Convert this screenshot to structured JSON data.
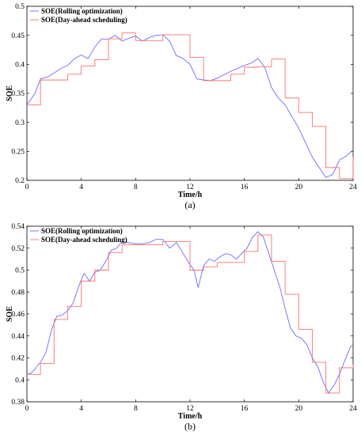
{
  "chart_data": [
    {
      "type": "line",
      "caption": "(a)",
      "xlabel": "Time/h",
      "ylabel": "SOE",
      "xlim": [
        0,
        24
      ],
      "ylim": [
        0.2,
        0.5
      ],
      "xticks": [
        0,
        4,
        8,
        12,
        16,
        20,
        24
      ],
      "yticks": [
        0.2,
        0.25,
        0.3,
        0.35,
        0.4,
        0.45,
        0.5
      ],
      "ytick_labels": [
        "0.2",
        "0.25",
        "0.3",
        "0.35",
        "0.4",
        "0.45",
        "0.5"
      ],
      "grid": false,
      "legend_position": "top-left",
      "series": [
        {
          "name": "SOE(Rolling optimization)",
          "color": "#6b6bff",
          "style": "line",
          "x": [
            0,
            0.3,
            0.6,
            1,
            1.5,
            2,
            2.5,
            3,
            3.5,
            4,
            4.5,
            5,
            5.5,
            6,
            6.5,
            7,
            7.5,
            8,
            8.5,
            9,
            9.5,
            10,
            10.5,
            11,
            11.5,
            12,
            12.5,
            13,
            13.5,
            14,
            14.5,
            15,
            15.5,
            16,
            16.5,
            17,
            17.5,
            18,
            18.5,
            19,
            19.5,
            20,
            20.5,
            21,
            21.5,
            22,
            22.5,
            23,
            23.5,
            24
          ],
          "y": [
            0.33,
            0.34,
            0.35,
            0.375,
            0.378,
            0.385,
            0.393,
            0.398,
            0.41,
            0.416,
            0.41,
            0.43,
            0.444,
            0.443,
            0.45,
            0.44,
            0.445,
            0.449,
            0.44,
            0.446,
            0.45,
            0.451,
            0.44,
            0.415,
            0.41,
            0.4,
            0.375,
            0.373,
            0.372,
            0.376,
            0.382,
            0.388,
            0.393,
            0.398,
            0.402,
            0.41,
            0.395,
            0.36,
            0.342,
            0.33,
            0.31,
            0.29,
            0.265,
            0.24,
            0.222,
            0.205,
            0.21,
            0.235,
            0.242,
            0.252
          ]
        },
        {
          "name": "SOE(Day-ahead scheduling)",
          "color": "#ff7070",
          "style": "step",
          "x": [
            0,
            1,
            2,
            3,
            4,
            5,
            6,
            7,
            8,
            9,
            10,
            11,
            12,
            13,
            14,
            15,
            16,
            17,
            18,
            19,
            20,
            21,
            22,
            23,
            24
          ],
          "y": [
            0.33,
            0.373,
            0.373,
            0.383,
            0.397,
            0.408,
            0.444,
            0.454,
            0.441,
            0.441,
            0.451,
            0.451,
            0.412,
            0.372,
            0.372,
            0.383,
            0.395,
            0.396,
            0.409,
            0.342,
            0.317,
            0.293,
            0.222,
            0.203,
            0.241
          ]
        }
      ]
    },
    {
      "type": "line",
      "caption": "(b)",
      "xlabel": "Time/h",
      "ylabel": "SOE",
      "xlim": [
        0,
        24
      ],
      "ylim": [
        0.38,
        0.54
      ],
      "xticks": [
        0,
        4,
        8,
        12,
        16,
        20,
        24
      ],
      "yticks": [
        0.38,
        0.4,
        0.42,
        0.44,
        0.46,
        0.48,
        0.5,
        0.52,
        0.54
      ],
      "ytick_labels": [
        "0.38",
        "0.4",
        "0.42",
        "0.44",
        "0.46",
        "0.48",
        "0.5",
        "0.52",
        "0.54"
      ],
      "grid": false,
      "legend_position": "top-left",
      "series": [
        {
          "name": "SOE(Rolling optimization)",
          "color": "#6b6bff",
          "style": "line",
          "x": [
            0,
            0.3,
            0.6,
            1,
            1.4,
            1.8,
            2.2,
            2.6,
            3,
            3.4,
            3.8,
            4.2,
            4.6,
            5,
            5.4,
            5.8,
            6.2,
            6.6,
            7,
            7.5,
            8,
            8.5,
            9,
            9.5,
            10,
            10.5,
            11,
            11.5,
            12,
            12.3,
            12.6,
            13,
            13.4,
            13.8,
            14.2,
            14.6,
            15,
            15.4,
            15.8,
            16.2,
            16.6,
            17,
            17.4,
            17.8,
            18.2,
            18.6,
            19,
            19.4,
            19.8,
            20.2,
            20.6,
            21,
            21.4,
            21.8,
            22.2,
            22.6,
            23,
            23.4,
            23.8,
            24
          ],
          "y": [
            0.405,
            0.406,
            0.41,
            0.416,
            0.425,
            0.445,
            0.458,
            0.459,
            0.463,
            0.47,
            0.485,
            0.497,
            0.49,
            0.498,
            0.5,
            0.508,
            0.518,
            0.52,
            0.526,
            0.525,
            0.524,
            0.524,
            0.525,
            0.528,
            0.528,
            0.52,
            0.525,
            0.515,
            0.505,
            0.5,
            0.484,
            0.504,
            0.51,
            0.508,
            0.512,
            0.515,
            0.514,
            0.51,
            0.515,
            0.52,
            0.53,
            0.535,
            0.53,
            0.515,
            0.5,
            0.485,
            0.465,
            0.447,
            0.44,
            0.438,
            0.432,
            0.42,
            0.412,
            0.398,
            0.388,
            0.395,
            0.405,
            0.418,
            0.43,
            0.432
          ]
        },
        {
          "name": "SOE(Day-ahead scheduling)",
          "color": "#ff7070",
          "style": "step",
          "x": [
            0,
            1,
            2,
            3,
            4,
            5,
            6,
            7,
            8,
            9,
            10,
            11,
            12,
            13,
            14,
            15,
            16,
            17,
            18,
            19,
            20,
            21,
            22,
            23,
            24
          ],
          "y": [
            0.405,
            0.415,
            0.455,
            0.467,
            0.49,
            0.5,
            0.516,
            0.523,
            0.523,
            0.523,
            0.526,
            0.526,
            0.5,
            0.503,
            0.507,
            0.507,
            0.517,
            0.532,
            0.508,
            0.478,
            0.446,
            0.416,
            0.388,
            0.411,
            0.414
          ]
        }
      ]
    }
  ]
}
